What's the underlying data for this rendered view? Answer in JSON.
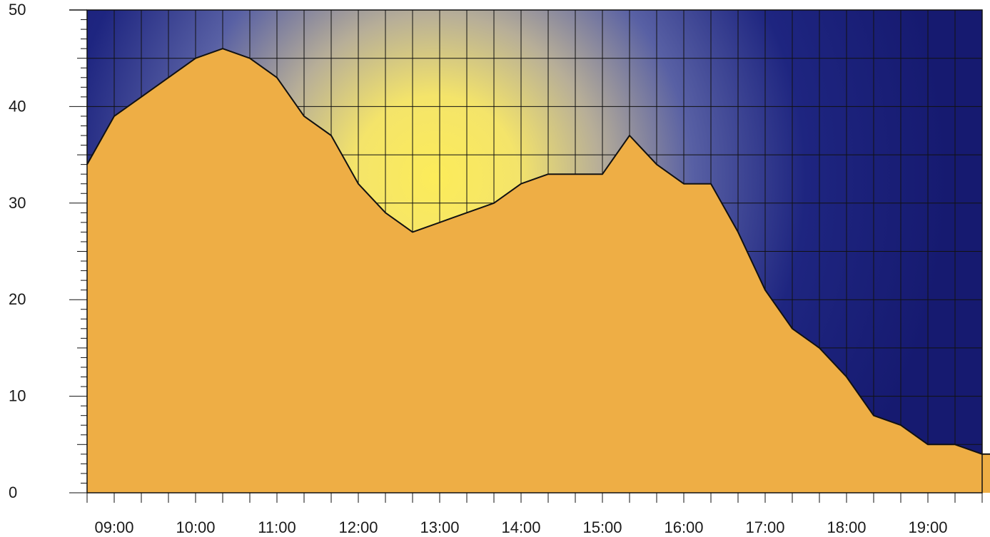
{
  "chart_data": {
    "type": "area",
    "title": "",
    "xlabel": "",
    "ylabel": "",
    "ylim": [
      0,
      50
    ],
    "y_ticks": [
      "0",
      "10",
      "20",
      "30",
      "40",
      "50"
    ],
    "x_tick_labels": [
      "09:00",
      "10:00",
      "11:00",
      "12:00",
      "13:00",
      "14:00",
      "15:00",
      "16:00",
      "17:00",
      "18:00",
      "19:00"
    ],
    "x": [
      "08:40",
      "09:00",
      "09:20",
      "09:40",
      "10:00",
      "10:20",
      "10:40",
      "11:00",
      "11:20",
      "11:40",
      "12:00",
      "12:20",
      "12:40",
      "13:00",
      "13:20",
      "13:40",
      "14:00",
      "14:20",
      "14:40",
      "15:00",
      "15:20",
      "15:40",
      "16:00",
      "16:20",
      "16:40",
      "17:00",
      "17:20",
      "17:40",
      "18:00",
      "18:20",
      "18:40",
      "19:00",
      "19:20",
      "19:40",
      "20:00"
    ],
    "values": [
      34,
      39,
      41,
      43,
      45,
      46,
      45,
      43,
      39,
      37,
      32,
      29,
      27,
      28,
      29,
      30,
      32,
      33,
      33,
      33,
      37,
      34,
      32,
      32,
      27,
      21,
      17,
      15,
      12,
      8,
      7,
      5,
      5,
      4,
      4
    ],
    "grid": true,
    "colors": {
      "fill": "#eeae45",
      "line": "#111111",
      "sky_bright": "#fcec5a",
      "sky_dark": "#161a70"
    }
  }
}
